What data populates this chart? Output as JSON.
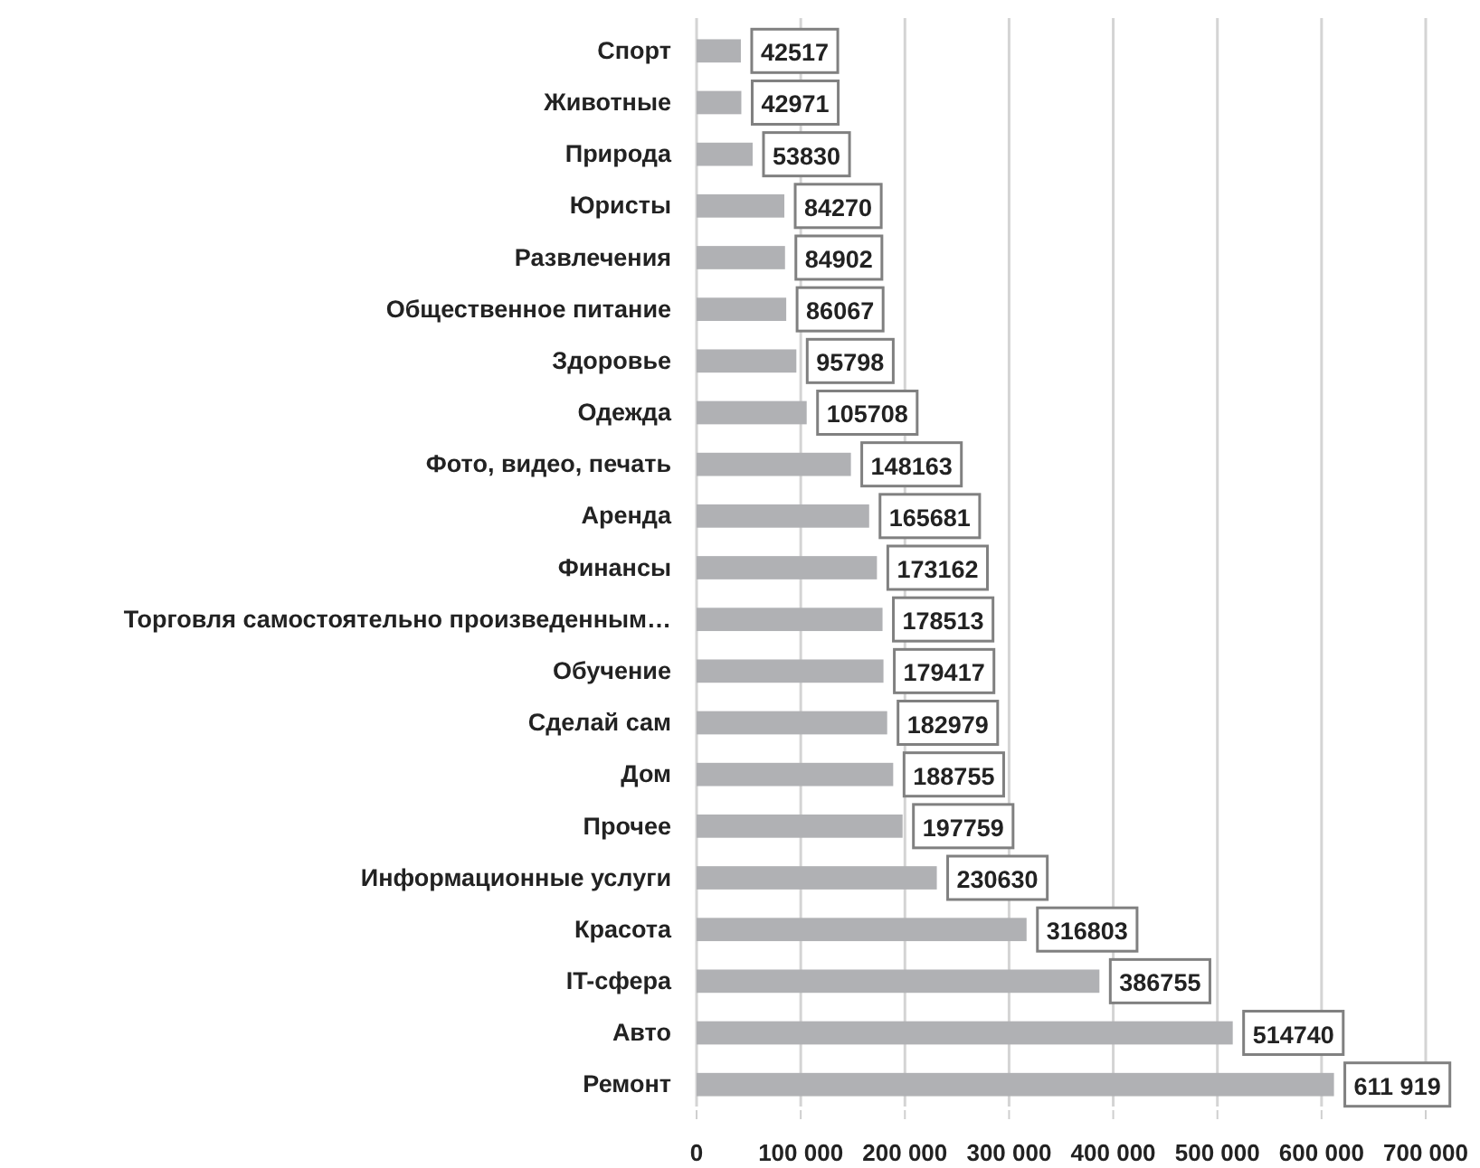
{
  "chart_data": {
    "type": "bar",
    "orientation": "horizontal",
    "categories": [
      "Спорт",
      "Животные",
      "Природа",
      "Юристы",
      "Развлечения",
      "Общественное питание",
      "Здоровье",
      "Одежда",
      "Фото, видео, печать",
      "Аренда",
      "Финансы",
      "Торговля самостоятельно произведенным…",
      "Обучение",
      "Сделай сам",
      "Дом",
      "Прочее",
      "Информационные услуги",
      "Красота",
      "IT-сфера",
      "Авто",
      "Ремонт"
    ],
    "values": [
      42517,
      42971,
      53830,
      84270,
      84902,
      86067,
      95798,
      105708,
      148163,
      165681,
      173162,
      178513,
      179417,
      182979,
      188755,
      197759,
      230630,
      316803,
      386755,
      514740,
      611919
    ],
    "value_labels": [
      "42517",
      "42971",
      "53830",
      "84270",
      "84902",
      "86067",
      "95798",
      "105708",
      "148163",
      "165681",
      "173162",
      "178513",
      "179417",
      "182979",
      "188755",
      "197759",
      "230630",
      "316803",
      "386755",
      "514740",
      "611 919"
    ],
    "color": "#b0b1b4",
    "xlim": [
      0,
      700000
    ],
    "xticks": [
      0,
      {
        "value": 100000,
        "label": "100 000"
      },
      {
        "value": 200000,
        "label": "200 000"
      },
      {
        "value": 300000,
        "label": "300 000"
      },
      {
        "value": 400000,
        "label": "400 000"
      },
      {
        "value": 500000,
        "label": "500 000"
      },
      {
        "value": 600000,
        "label": "600 000"
      },
      {
        "value": 700000,
        "label": "700 000"
      }
    ],
    "grid": "x"
  }
}
